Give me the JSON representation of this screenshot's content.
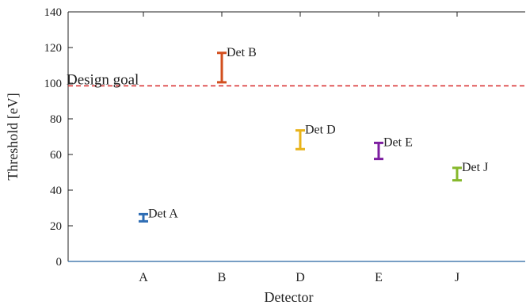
{
  "chart_data": {
    "type": "errorbar",
    "title": "",
    "xlabel": "Detector",
    "ylabel": "Threshold [eV]",
    "categories": [
      "A",
      "B",
      "D",
      "E",
      "J"
    ],
    "ylim": [
      0,
      140
    ],
    "yticks": [
      0,
      20,
      40,
      60,
      80,
      100,
      120,
      140
    ],
    "ytick_labels": [
      "0",
      "20",
      "40",
      "60",
      "80",
      "100",
      "120",
      "140"
    ],
    "grid": false,
    "series": [
      {
        "name": "Det A",
        "category": "A",
        "low": 22.5,
        "high": 26.5,
        "color": "#2e6db4"
      },
      {
        "name": "Det B",
        "category": "B",
        "low": 100.5,
        "high": 117,
        "color": "#d24f1e"
      },
      {
        "name": "Det D",
        "category": "D",
        "low": 63,
        "high": 73.5,
        "color": "#e8b31a"
      },
      {
        "name": "Det E",
        "category": "E",
        "low": 57.5,
        "high": 66.5,
        "color": "#7d1ea0"
      },
      {
        "name": "Det J",
        "category": "J",
        "low": 45.5,
        "high": 52.5,
        "color": "#86b82c"
      }
    ],
    "annotations": [
      {
        "text": "Design goal",
        "y": 98.5,
        "style": "dashed",
        "color": "#d62728"
      }
    ]
  }
}
